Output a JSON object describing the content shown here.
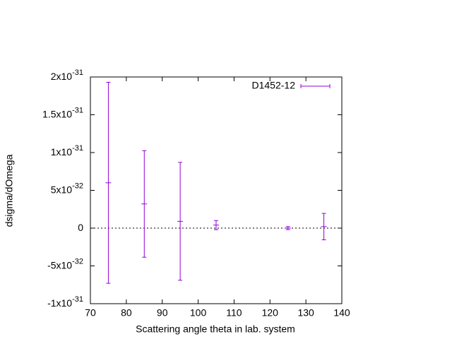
{
  "chart_data": {
    "type": "errorbar",
    "xlabel": "Scattering angle theta in lab. system",
    "ylabel": "dsigma/dOmega",
    "xlim": [
      70,
      140
    ],
    "xticks": [
      70,
      80,
      90,
      100,
      110,
      120,
      130,
      140
    ],
    "ylim": [
      -1e-31,
      2e-31
    ],
    "yticks": [
      {
        "value": -1e-31,
        "label": "-1x10",
        "exponent": "-31"
      },
      {
        "value": -5e-32,
        "label": "-5x10",
        "exponent": "-32"
      },
      {
        "value": 0,
        "label": "0"
      },
      {
        "value": 5e-32,
        "label": "5x10",
        "exponent": "-32"
      },
      {
        "value": 1e-31,
        "label": "1x10",
        "exponent": "-31"
      },
      {
        "value": 1.5e-31,
        "label": "1.5x10",
        "exponent": "-31"
      },
      {
        "value": 2e-31,
        "label": "2x10",
        "exponent": "-31"
      }
    ],
    "zero_line": true,
    "legend": "top-right",
    "series": [
      {
        "name": "D1452-12",
        "color": "#9400d3",
        "x": [
          75,
          85,
          95,
          105,
          125,
          135
        ],
        "values": [
          6e-32,
          3.2e-32,
          9e-33,
          4e-33,
          0,
          2e-33
        ],
        "errors": [
          1.33e-31,
          7.05e-32,
          7.8e-32,
          6e-33,
          2e-33,
          1.75e-32
        ]
      }
    ]
  }
}
